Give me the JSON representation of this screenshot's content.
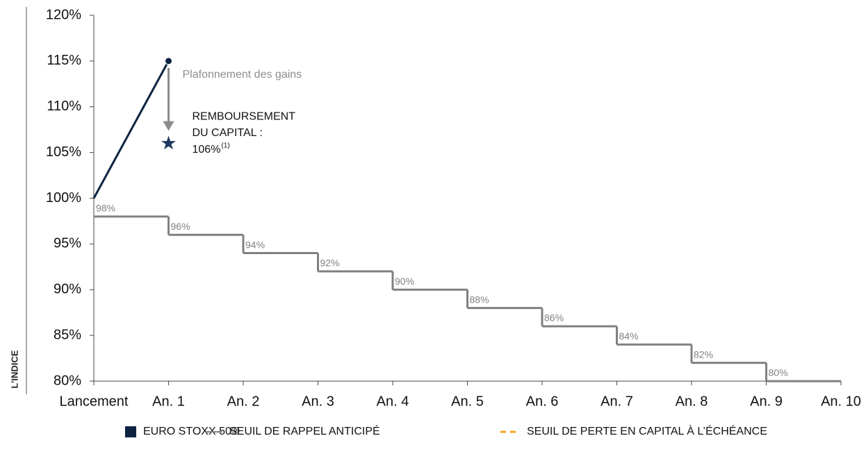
{
  "chart_data": {
    "type": "line",
    "y_label": "L'INDICE",
    "categories": [
      "Lancement",
      "An. 1",
      "An. 2",
      "An. 3",
      "An. 4",
      "An. 5",
      "An. 6",
      "An. 7",
      "An. 8",
      "An. 9",
      "An. 10"
    ],
    "series": [
      {
        "name": "EURO STOXX 50®",
        "color": "#0d2340",
        "style": "line",
        "values": [
          100,
          115,
          null,
          null,
          null,
          null,
          null,
          null,
          null,
          null,
          null
        ]
      },
      {
        "name": "SEUIL DE RAPPEL ANTICIPÉ",
        "color": "#808080",
        "style": "step",
        "values": [
          98,
          96,
          94,
          92,
          90,
          88,
          86,
          84,
          82,
          80,
          null
        ],
        "value_labels": [
          "98%",
          "96%",
          "94%",
          "92%",
          "90%",
          "88%",
          "86%",
          "84%",
          "82%",
          "80%",
          null
        ]
      },
      {
        "name": "SEUIL DE PERTE EN CAPITAL À L’ÉCHÉANCE",
        "color": "#f5a623",
        "style": "dashed",
        "values": [
          null,
          null,
          null,
          null,
          null,
          null,
          null,
          null,
          null,
          null,
          null
        ]
      }
    ],
    "ylim": [
      80,
      120
    ],
    "yticks": [
      {
        "value": 80,
        "label": "80%"
      },
      {
        "value": 85,
        "label": "85%"
      },
      {
        "value": 90,
        "label": "90%"
      },
      {
        "value": 95,
        "label": "95%"
      },
      {
        "value": 100,
        "label": "100%"
      },
      {
        "value": 105,
        "label": "105%"
      },
      {
        "value": 110,
        "label": "110%"
      },
      {
        "value": 115,
        "label": "115%"
      },
      {
        "value": 120,
        "label": "120%"
      }
    ],
    "annotations": {
      "cap_text": "Plafonnement des gains",
      "star": {
        "x": "An. 1",
        "y": 106,
        "lines": [
          "REMBOURSEMENT",
          "DU CAPITAL :",
          "106%"
        ],
        "footnote": "(1)",
        "color": "#1f3a5f"
      }
    }
  }
}
